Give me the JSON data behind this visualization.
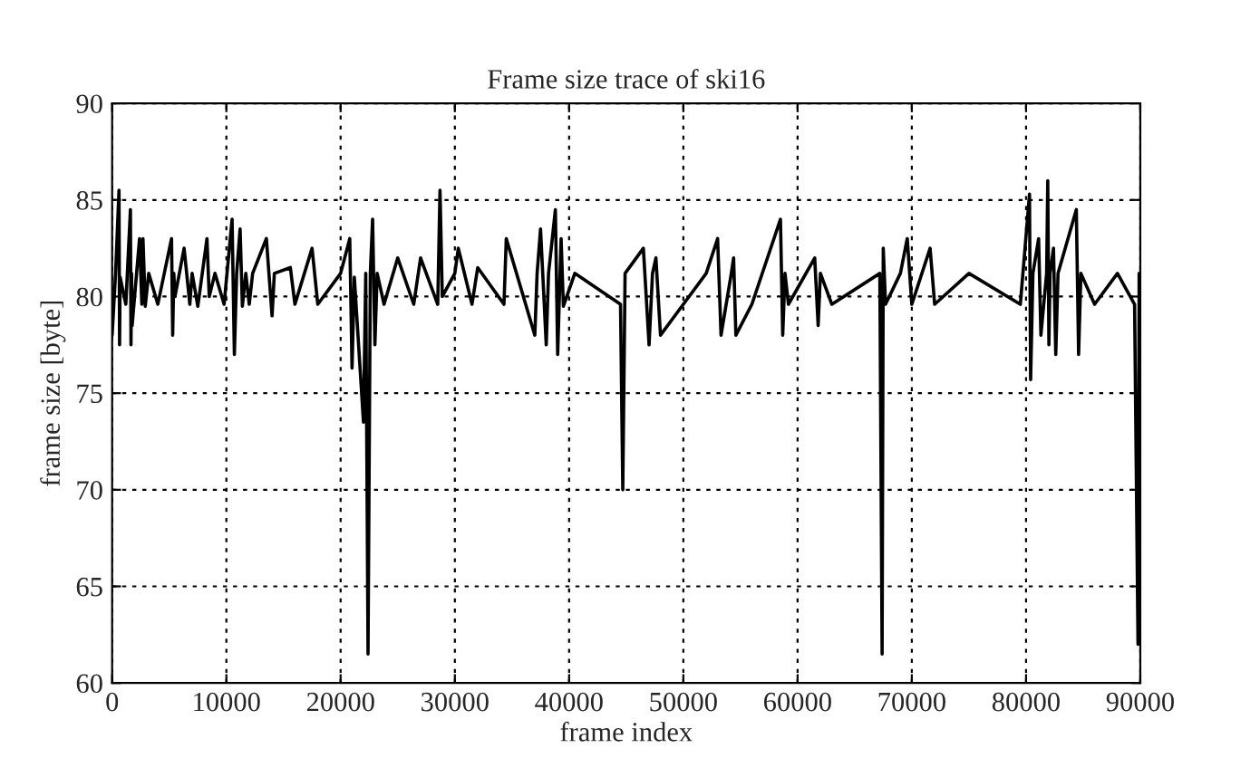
{
  "chart_data": {
    "type": "line",
    "title": "Frame size trace of ski16",
    "xlabel": "frame index",
    "ylabel": "frame size [byte]",
    "xlim": [
      0,
      90000
    ],
    "ylim": [
      60,
      90
    ],
    "xticks": [
      0,
      10000,
      20000,
      30000,
      40000,
      50000,
      60000,
      70000,
      80000,
      90000
    ],
    "yticks": [
      60,
      65,
      70,
      75,
      80,
      85,
      90
    ],
    "grid": true,
    "marker": "none",
    "line_style": "solid",
    "series": [
      {
        "color": "#000000",
        "x": [
          0,
          300,
          600,
          650,
          700,
          1200,
          1600,
          1650,
          1700,
          1750,
          2400,
          2600,
          2700,
          2900,
          3200,
          4000,
          5200,
          5300,
          5400,
          5500,
          6300,
          6800,
          7000,
          7500,
          8300,
          8500,
          9000,
          9800,
          10500,
          10700,
          10900,
          11200,
          11400,
          11700,
          12000,
          12300,
          13500,
          14000,
          14200,
          15600,
          16000,
          17500,
          18000,
          20000,
          20800,
          21000,
          21200,
          22000,
          22200,
          22400,
          22600,
          22800,
          23000,
          23200,
          23800,
          25000,
          26400,
          27000,
          28500,
          28700,
          28900,
          30000,
          30300,
          31500,
          32000,
          34300,
          34500,
          37000,
          37200,
          37500,
          38000,
          38200,
          38800,
          39000,
          39300,
          39500,
          40500,
          44500,
          44700,
          44900,
          46500,
          47000,
          47300,
          47600,
          48000,
          50000,
          52000,
          53000,
          53300,
          54200,
          54400,
          54600,
          56000,
          58500,
          58700,
          58900,
          59200,
          61500,
          61800,
          62000,
          63000,
          67200,
          67400,
          67500,
          67700,
          69000,
          69600,
          70000,
          71600,
          72000,
          75000,
          79500,
          80300,
          80400,
          80600,
          81100,
          81300,
          81800,
          81900,
          82000,
          82100,
          82400,
          82600,
          82800,
          84400,
          84600,
          84800,
          86000,
          88000,
          89500,
          89800,
          89900,
          90000
        ],
        "values": [
          78,
          81.2,
          85.5,
          77.5,
          81,
          79.6,
          84.5,
          77.5,
          81.2,
          78.5,
          83,
          79.6,
          83,
          79.5,
          81.2,
          79.6,
          83,
          78,
          81.2,
          80,
          82.5,
          79.6,
          81.2,
          79.5,
          83,
          80,
          81.2,
          79.6,
          84,
          77,
          81.2,
          83.5,
          79.5,
          81.2,
          79.6,
          81.2,
          83,
          79,
          81.2,
          81.5,
          79.6,
          82.5,
          79.6,
          81.2,
          83,
          76.3,
          81,
          73.5,
          81.2,
          61.5,
          81.2,
          84,
          77.5,
          81.2,
          79.6,
          82,
          79.6,
          82,
          79.6,
          85.5,
          80,
          81.2,
          82.5,
          79.6,
          81.5,
          79.6,
          83,
          78,
          81.2,
          83.5,
          77.5,
          81.2,
          84.5,
          77,
          83,
          79.5,
          81.2,
          79.6,
          70,
          81.2,
          82.5,
          77.5,
          81.2,
          82,
          78,
          79.6,
          81.2,
          83,
          78,
          81.2,
          82,
          78,
          79.6,
          84,
          78,
          81.2,
          79.6,
          82,
          78.5,
          81.2,
          79.6,
          81.2,
          61.5,
          82.5,
          79.6,
          81.2,
          83,
          79.6,
          82.5,
          79.6,
          81.2,
          79.6,
          85.3,
          75.7,
          81.2,
          83,
          78,
          81.2,
          86,
          77.5,
          81.2,
          82.5,
          77,
          81.2,
          84.5,
          77,
          81.2,
          79.6,
          81.2,
          79.6,
          62,
          81.2,
          72
        ]
      }
    ]
  }
}
